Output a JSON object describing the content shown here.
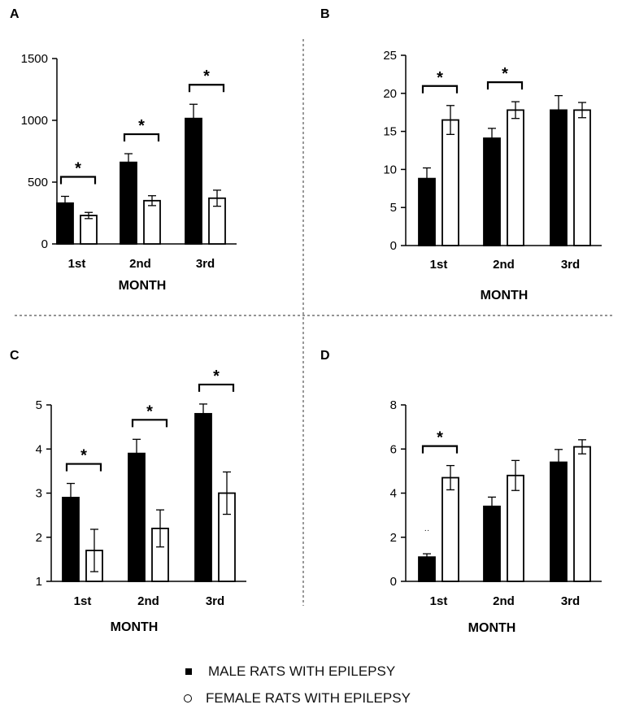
{
  "chart_data": [
    {
      "panel": "A",
      "type": "bar",
      "categories": [
        "1st",
        "2nd",
        "3rd"
      ],
      "xlabel": "MONTH",
      "ylabel": "",
      "ylim": [
        0,
        1500
      ],
      "yticks": [
        0,
        500,
        1000,
        1500
      ],
      "series": [
        {
          "name": "MALE RATS WITH EPILEPSY",
          "values": [
            330,
            660,
            1015
          ],
          "errors": [
            55,
            70,
            115
          ]
        },
        {
          "name": "FEMALE RATS WITH EPILEPSY",
          "values": [
            230,
            350,
            370
          ],
          "errors": [
            25,
            40,
            65
          ]
        }
      ],
      "significance": [
        0,
        1,
        2
      ],
      "significance_label": "*"
    },
    {
      "panel": "B",
      "type": "bar",
      "categories": [
        "1st",
        "2nd",
        "3rd"
      ],
      "xlabel": "MONTH",
      "ylabel": "",
      "ylim": [
        0,
        25
      ],
      "yticks": [
        0,
        5,
        10,
        15,
        20,
        25
      ],
      "series": [
        {
          "name": "MALE RATS WITH EPILEPSY",
          "values": [
            8.8,
            14.1,
            17.8
          ],
          "errors": [
            1.4,
            1.3,
            1.9
          ]
        },
        {
          "name": "FEMALE RATS WITH EPILEPSY",
          "values": [
            16.5,
            17.8,
            17.8
          ],
          "errors": [
            1.9,
            1.1,
            1.0
          ]
        }
      ],
      "significance": [
        0,
        1
      ],
      "significance_label": "*"
    },
    {
      "panel": "C",
      "type": "bar",
      "categories": [
        "1st",
        "2nd",
        "3rd"
      ],
      "xlabel": "MONTH",
      "ylabel": "",
      "ylim": [
        1,
        5
      ],
      "yticks": [
        1,
        2,
        3,
        4,
        5
      ],
      "series": [
        {
          "name": "MALE RATS WITH EPILEPSY",
          "values": [
            2.9,
            3.9,
            4.8
          ],
          "errors": [
            0.32,
            0.32,
            0.22
          ]
        },
        {
          "name": "FEMALE RATS WITH EPILEPSY",
          "values": [
            1.7,
            2.2,
            3.0
          ],
          "errors": [
            0.48,
            0.42,
            0.48
          ]
        }
      ],
      "significance": [
        0,
        1,
        2
      ],
      "significance_label": "*"
    },
    {
      "panel": "D",
      "type": "bar",
      "categories": [
        "1st",
        "2nd",
        "3rd"
      ],
      "xlabel": "MONTH",
      "ylabel": "",
      "ylim": [
        0,
        8
      ],
      "yticks": [
        0,
        2,
        4,
        6,
        8
      ],
      "series": [
        {
          "name": "MALE RATS WITH EPILEPSY",
          "values": [
            1.1,
            3.4,
            5.4
          ],
          "errors": [
            0.15,
            0.42,
            0.58
          ]
        },
        {
          "name": "FEMALE RATS WITH EPILEPSY",
          "values": [
            4.7,
            4.8,
            6.1
          ],
          "errors": [
            0.55,
            0.68,
            0.32
          ]
        }
      ],
      "significance": [
        0
      ],
      "significance_label": "*",
      "annotation": "··"
    }
  ],
  "legend": {
    "male": "MALE RATS WITH EPILEPSY",
    "female": "FEMALE RATS WITH EPILEPSY"
  },
  "colors": {
    "male_fill": "#000000",
    "female_fill": "#ffffff",
    "stroke": "#000000",
    "divider": "#555555"
  }
}
